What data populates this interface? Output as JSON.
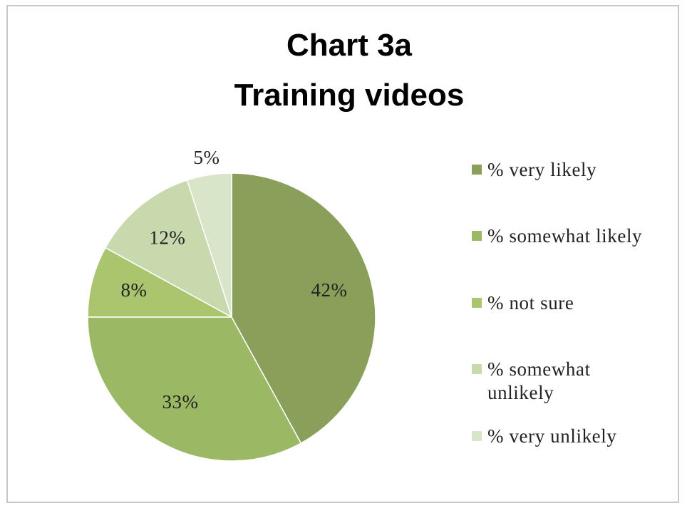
{
  "chart_data": {
    "type": "pie",
    "title": "Chart 3a",
    "subtitle": "Training videos",
    "categories": [
      "% very likely",
      "% somewhat likely",
      "% not sure",
      "% somewhat unlikely",
      "% very unlikely"
    ],
    "values": [
      42,
      33,
      8,
      12,
      5
    ],
    "value_labels": [
      "42%",
      "33%",
      "8%",
      "12%",
      "5%"
    ],
    "colors": [
      "#8aa05a",
      "#9bb865",
      "#aac56e",
      "#c9d9ae",
      "#d9e5c8"
    ],
    "legend": "right"
  }
}
